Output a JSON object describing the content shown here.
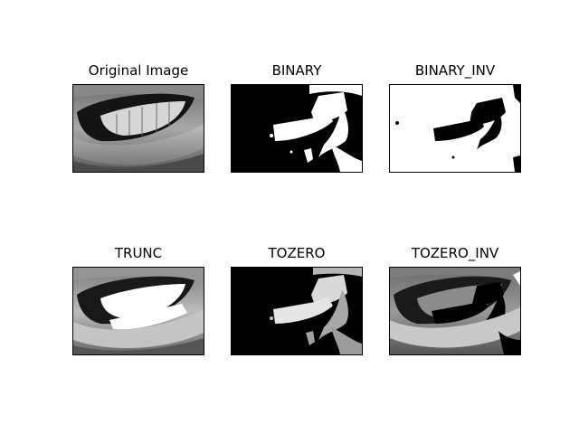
{
  "figure": {
    "panels": [
      {
        "id": "original",
        "title": "Original Image",
        "variant": "original"
      },
      {
        "id": "binary",
        "title": "BINARY",
        "variant": "binary"
      },
      {
        "id": "binary-inv",
        "title": "BINARY_INV",
        "variant": "binary_inv"
      },
      {
        "id": "trunc",
        "title": "TRUNC",
        "variant": "trunc"
      },
      {
        "id": "tozero",
        "title": "TOZERO",
        "variant": "tozero"
      },
      {
        "id": "tozero-inv",
        "title": "TOZERO_INV",
        "variant": "tozero_inv"
      }
    ]
  }
}
